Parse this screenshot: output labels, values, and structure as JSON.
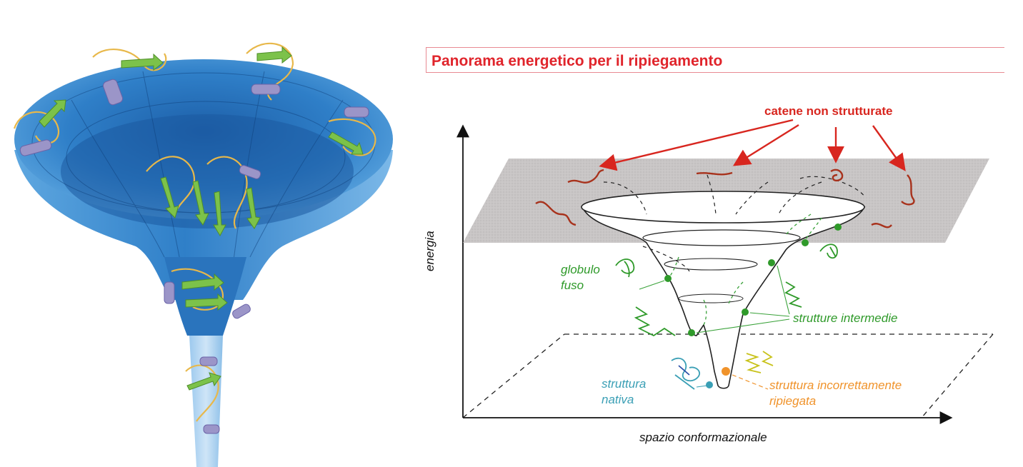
{
  "title": "Panorama energetico per il ripiegamento",
  "labels": {
    "unstructured": "catene non strutturate",
    "globule_line1": "globulo",
    "globule_line2": "fuso",
    "intermediates": "strutture intermedie",
    "native_line1": "struttura",
    "native_line2": "nativa",
    "misfolded_line1": "struttura incorrettamente",
    "misfolded_line2": "ripiegata",
    "y_axis": "energia",
    "x_axis": "spazio conformazionale"
  },
  "colors": {
    "title": "#e0242b",
    "red": "#d8261f",
    "green": "#2f9a2a",
    "teal": "#3a9fb5",
    "orange": "#f0932b",
    "funnel_blue": "#2f7fc8",
    "sheet_green": "#7cc24a",
    "helix_purple": "#9b95c8",
    "loop_yellow": "#e8b84a"
  }
}
